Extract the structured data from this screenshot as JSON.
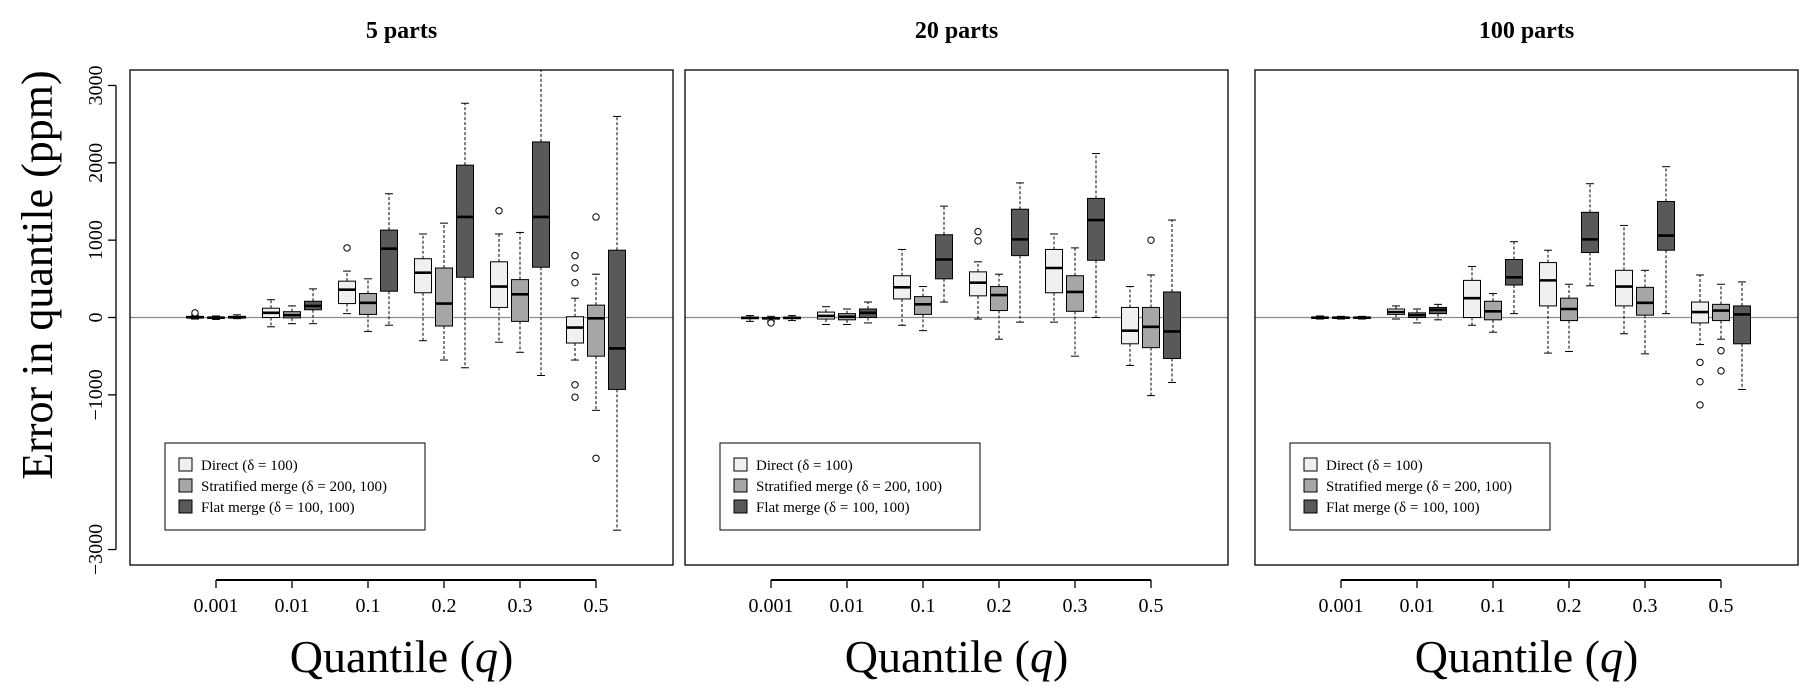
{
  "ylabel": "Error in quantile (ppm)",
  "xlabel_prefix": "Quantile (",
  "xlabel_var": "q",
  "xlabel_suffix": ")",
  "colors": {
    "direct": "#f0f0f0",
    "stratified": "#a6a6a6",
    "flat": "#595959",
    "stroke": "#000000",
    "zero_line": "#8c8c8c"
  },
  "legend_entries": [
    "Direct (δ = 100)",
    "Stratified merge (δ = 200, 100)",
    "Flat merge (δ = 100, 100)"
  ],
  "chart_data": [
    {
      "type": "boxplot",
      "title": "5  parts",
      "xlabel": "Quantile (q)",
      "ylabel": "Error in quantile (ppm)",
      "categories": [
        "0.001",
        "0.01",
        "0.1",
        "0.2",
        "0.3",
        "0.5"
      ],
      "ylim": [
        -3200,
        3200
      ],
      "yticks": [
        -3000,
        -1000,
        0,
        1000,
        2000,
        3000
      ],
      "legend_position": "bottom-left",
      "series": [
        {
          "name": "Direct (δ = 100)",
          "boxes": [
            {
              "min": -20,
              "q1": -5,
              "median": 2,
              "q3": 15,
              "max": 30,
              "outliers": [
                60
              ]
            },
            {
              "min": -120,
              "q1": 0,
              "median": 60,
              "q3": 120,
              "max": 230,
              "outliers": []
            },
            {
              "min": 50,
              "q1": 180,
              "median": 360,
              "q3": 470,
              "max": 600,
              "outliers": [
                900
              ]
            },
            {
              "min": -300,
              "q1": 320,
              "median": 580,
              "q3": 760,
              "max": 1080,
              "outliers": []
            },
            {
              "min": -320,
              "q1": 130,
              "median": 400,
              "q3": 720,
              "max": 1080,
              "outliers": [
                1380
              ]
            },
            {
              "min": -550,
              "q1": -330,
              "median": -130,
              "q3": 10,
              "max": 250,
              "outliers": [
                800,
                640,
                450,
                -870,
                -1030
              ]
            }
          ]
        },
        {
          "name": "Stratified merge (δ = 200, 100)",
          "boxes": [
            {
              "min": -25,
              "q1": -10,
              "median": -3,
              "q3": 5,
              "max": 20,
              "outliers": []
            },
            {
              "min": -80,
              "q1": -5,
              "median": 30,
              "q3": 75,
              "max": 150,
              "outliers": []
            },
            {
              "min": -180,
              "q1": 40,
              "median": 190,
              "q3": 310,
              "max": 500,
              "outliers": []
            },
            {
              "min": -550,
              "q1": -110,
              "median": 180,
              "q3": 640,
              "max": 1220,
              "outliers": []
            },
            {
              "min": -450,
              "q1": -50,
              "median": 300,
              "q3": 490,
              "max": 1100,
              "outliers": []
            },
            {
              "min": -1200,
              "q1": -500,
              "median": -10,
              "q3": 160,
              "max": 560,
              "outliers": [
                1300,
                -1820
              ]
            }
          ]
        },
        {
          "name": "Flat merge (δ = 100, 100)",
          "boxes": [
            {
              "min": -15,
              "q1": -5,
              "median": 3,
              "q3": 15,
              "max": 35,
              "outliers": []
            },
            {
              "min": -80,
              "q1": 100,
              "median": 150,
              "q3": 210,
              "max": 370,
              "outliers": []
            },
            {
              "min": -100,
              "q1": 340,
              "median": 890,
              "q3": 1130,
              "max": 1600,
              "outliers": []
            },
            {
              "min": -650,
              "q1": 520,
              "median": 1300,
              "q3": 1970,
              "max": 2770,
              "outliers": []
            },
            {
              "min": -750,
              "q1": 650,
              "median": 1300,
              "q3": 2270,
              "max": 3300,
              "outliers": []
            },
            {
              "min": -2750,
              "q1": -930,
              "median": -400,
              "q3": 870,
              "max": 2600,
              "outliers": []
            }
          ]
        }
      ]
    },
    {
      "type": "boxplot",
      "title": "20  parts",
      "xlabel": "Quantile (q)",
      "ylabel": "Error in quantile (ppm)",
      "categories": [
        "0.001",
        "0.01",
        "0.1",
        "0.2",
        "0.3",
        "0.5"
      ],
      "ylim": [
        -3200,
        3200
      ],
      "yticks": [
        -3000,
        -1000,
        0,
        1000,
        2000,
        3000
      ],
      "legend_position": "bottom-left",
      "series": [
        {
          "name": "Direct (δ = 100)",
          "boxes": [
            {
              "min": -50,
              "q1": -15,
              "median": -5,
              "q3": 5,
              "max": 25,
              "outliers": []
            },
            {
              "min": -90,
              "q1": -20,
              "median": 20,
              "q3": 70,
              "max": 140,
              "outliers": []
            },
            {
              "min": -100,
              "q1": 240,
              "median": 390,
              "q3": 540,
              "max": 880,
              "outliers": []
            },
            {
              "min": -20,
              "q1": 280,
              "median": 450,
              "q3": 590,
              "max": 720,
              "outliers": [
                1110,
                990
              ]
            },
            {
              "min": -60,
              "q1": 320,
              "median": 640,
              "q3": 880,
              "max": 1080,
              "outliers": []
            },
            {
              "min": -620,
              "q1": -340,
              "median": -170,
              "q3": 130,
              "max": 400,
              "outliers": []
            }
          ]
        },
        {
          "name": "Stratified merge (δ = 200, 100)",
          "boxes": [
            {
              "min": -45,
              "q1": -20,
              "median": -10,
              "q3": 0,
              "max": 15,
              "outliers": [
                -70
              ]
            },
            {
              "min": -90,
              "q1": -30,
              "median": 10,
              "q3": 50,
              "max": 110,
              "outliers": []
            },
            {
              "min": -170,
              "q1": 40,
              "median": 170,
              "q3": 270,
              "max": 400,
              "outliers": []
            },
            {
              "min": -280,
              "q1": 90,
              "median": 290,
              "q3": 400,
              "max": 560,
              "outliers": []
            },
            {
              "min": -500,
              "q1": 80,
              "median": 330,
              "q3": 540,
              "max": 900,
              "outliers": []
            },
            {
              "min": -1010,
              "q1": -390,
              "median": -120,
              "q3": 130,
              "max": 550,
              "outliers": [
                1000
              ]
            }
          ]
        },
        {
          "name": "Flat merge (δ = 100, 100)",
          "boxes": [
            {
              "min": -40,
              "q1": -15,
              "median": -5,
              "q3": 5,
              "max": 25,
              "outliers": []
            },
            {
              "min": -70,
              "q1": 0,
              "median": 60,
              "q3": 110,
              "max": 200,
              "outliers": []
            },
            {
              "min": 200,
              "q1": 500,
              "median": 750,
              "q3": 1070,
              "max": 1440,
              "outliers": []
            },
            {
              "min": -60,
              "q1": 800,
              "median": 1010,
              "q3": 1400,
              "max": 1740,
              "outliers": []
            },
            {
              "min": 0,
              "q1": 740,
              "median": 1260,
              "q3": 1540,
              "max": 2120,
              "outliers": []
            },
            {
              "min": -840,
              "q1": -530,
              "median": -180,
              "q3": 330,
              "max": 1260,
              "outliers": []
            }
          ]
        }
      ]
    },
    {
      "type": "boxplot",
      "title": "100  parts",
      "xlabel": "Quantile (q)",
      "ylabel": "Error in quantile (ppm)",
      "categories": [
        "0.001",
        "0.01",
        "0.1",
        "0.2",
        "0.3",
        "0.5"
      ],
      "ylim": [
        -3200,
        3200
      ],
      "yticks": [
        -3000,
        -1000,
        0,
        1000,
        2000,
        3000
      ],
      "legend_position": "bottom-left",
      "series": [
        {
          "name": "Direct (δ = 100)",
          "boxes": [
            {
              "min": -20,
              "q1": -10,
              "median": -2,
              "q3": 5,
              "max": 20,
              "outliers": []
            },
            {
              "min": -20,
              "q1": 40,
              "median": 70,
              "q3": 110,
              "max": 150,
              "outliers": []
            },
            {
              "min": -100,
              "q1": 0,
              "median": 250,
              "q3": 480,
              "max": 660,
              "outliers": []
            },
            {
              "min": -460,
              "q1": 150,
              "median": 480,
              "q3": 710,
              "max": 870,
              "outliers": []
            },
            {
              "min": -210,
              "q1": 150,
              "median": 400,
              "q3": 610,
              "max": 1190,
              "outliers": []
            },
            {
              "min": -350,
              "q1": -70,
              "median": 70,
              "q3": 200,
              "max": 550,
              "outliers": [
                -580,
                -830,
                -1130
              ]
            }
          ]
        },
        {
          "name": "Stratified merge (δ = 200, 100)",
          "boxes": [
            {
              "min": -20,
              "q1": -10,
              "median": -2,
              "q3": 5,
              "max": 15,
              "outliers": []
            },
            {
              "min": -70,
              "q1": 0,
              "median": 30,
              "q3": 60,
              "max": 110,
              "outliers": []
            },
            {
              "min": -190,
              "q1": -30,
              "median": 80,
              "q3": 210,
              "max": 310,
              "outliers": []
            },
            {
              "min": -440,
              "q1": -40,
              "median": 110,
              "q3": 250,
              "max": 430,
              "outliers": []
            },
            {
              "min": -470,
              "q1": 30,
              "median": 190,
              "q3": 390,
              "max": 610,
              "outliers": []
            },
            {
              "min": -280,
              "q1": -40,
              "median": 90,
              "q3": 170,
              "max": 430,
              "outliers": [
                -430,
                -690
              ]
            }
          ]
        },
        {
          "name": "Flat merge (δ = 100, 100)",
          "boxes": [
            {
              "min": -20,
              "q1": -10,
              "median": -2,
              "q3": 5,
              "max": 15,
              "outliers": []
            },
            {
              "min": -30,
              "q1": 50,
              "median": 100,
              "q3": 130,
              "max": 170,
              "outliers": []
            },
            {
              "min": 50,
              "q1": 420,
              "median": 520,
              "q3": 750,
              "max": 980,
              "outliers": []
            },
            {
              "min": 410,
              "q1": 840,
              "median": 1010,
              "q3": 1360,
              "max": 1730,
              "outliers": []
            },
            {
              "min": 50,
              "q1": 870,
              "median": 1060,
              "q3": 1500,
              "max": 1950,
              "outliers": []
            },
            {
              "min": -930,
              "q1": -340,
              "median": 40,
              "q3": 150,
              "max": 460,
              "outliers": []
            }
          ]
        }
      ]
    }
  ]
}
